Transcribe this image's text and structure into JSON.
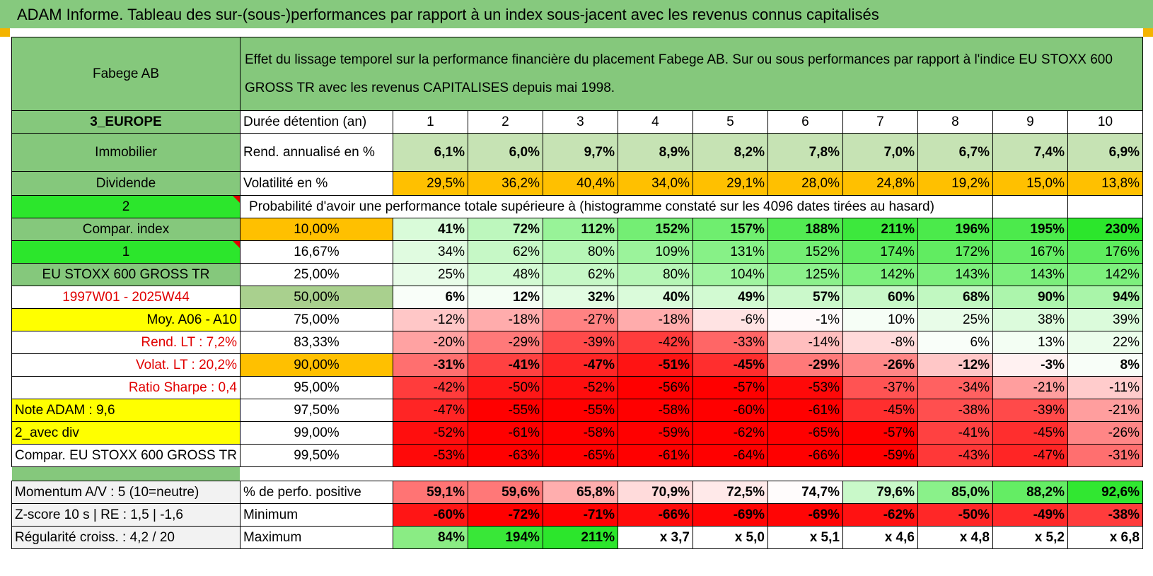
{
  "title": "ADAM Informe. Tableau des sur-(sous-)performances par rapport à un index sous-jacent avec les revenus connus capitalisés",
  "header": {
    "name": "Fabege AB",
    "description": "Effet du lissage temporel sur la performance financière du placement Fabege AB. Sur ou sous performances par rapport à l'indice EU STOXX 600 GROSS TR avec les revenus CAPITALISES depuis mai 1998."
  },
  "side": {
    "region": "3_EUROPE",
    "sector": "Immobilier",
    "type": "Dividende",
    "n2": "2",
    "compar_index": "Compar. index",
    "n1": "1",
    "index_name": "EU STOXX 600 GROSS TR",
    "period": "1997W01 - 2025W44",
    "moy": "Moy. A06 - A10",
    "rend_lt": "Rend. LT :   7,2%",
    "volat_lt": "Volat. LT :   20,2%",
    "sharpe": "Ratio Sharpe :    0,4",
    "note": "Note ADAM : 9,6",
    "avec_div": "2_avec div",
    "compar_name": "Compar. EU STOXX 600 GROSS TR"
  },
  "labels": {
    "duree": "Durée détention (an)",
    "rend": "Rend. annualisé en %",
    "vol": "Volatilité en %",
    "proba": "Probabilité d'avoir une performance totale supérieure à (histogramme constaté sur les 4096 dates tirées au hasard)"
  },
  "years": [
    "1",
    "2",
    "3",
    "4",
    "5",
    "6",
    "7",
    "8",
    "9",
    "10"
  ],
  "rend": [
    "6,1%",
    "6,0%",
    "9,7%",
    "8,9%",
    "8,2%",
    "7,8%",
    "7,0%",
    "6,7%",
    "7,4%",
    "6,9%"
  ],
  "vol": [
    "29,5%",
    "36,2%",
    "40,4%",
    "34,0%",
    "29,1%",
    "28,0%",
    "24,8%",
    "19,2%",
    "15,0%",
    "13,8%"
  ],
  "proba_rows": [
    {
      "pct": "10,00%",
      "vals": [
        "41%",
        "72%",
        "112%",
        "152%",
        "157%",
        "188%",
        "211%",
        "196%",
        "195%",
        "230%"
      ]
    },
    {
      "pct": "16,67%",
      "vals": [
        "34%",
        "62%",
        "80%",
        "109%",
        "131%",
        "152%",
        "174%",
        "172%",
        "167%",
        "176%"
      ]
    },
    {
      "pct": "25,00%",
      "vals": [
        "25%",
        "48%",
        "62%",
        "80%",
        "104%",
        "125%",
        "142%",
        "143%",
        "143%",
        "142%"
      ]
    },
    {
      "pct": "50,00%",
      "vals": [
        "6%",
        "12%",
        "32%",
        "40%",
        "49%",
        "57%",
        "60%",
        "68%",
        "90%",
        "94%"
      ]
    },
    {
      "pct": "75,00%",
      "vals": [
        "-12%",
        "-18%",
        "-27%",
        "-18%",
        "-6%",
        "-1%",
        "10%",
        "25%",
        "38%",
        "39%"
      ]
    },
    {
      "pct": "83,33%",
      "vals": [
        "-20%",
        "-29%",
        "-39%",
        "-42%",
        "-33%",
        "-14%",
        "-8%",
        "6%",
        "13%",
        "22%"
      ]
    },
    {
      "pct": "90,00%",
      "vals": [
        "-31%",
        "-41%",
        "-47%",
        "-51%",
        "-45%",
        "-29%",
        "-26%",
        "-12%",
        "-3%",
        "8%"
      ]
    },
    {
      "pct": "95,00%",
      "vals": [
        "-42%",
        "-50%",
        "-52%",
        "-56%",
        "-57%",
        "-53%",
        "-37%",
        "-34%",
        "-21%",
        "-11%"
      ]
    },
    {
      "pct": "97,50%",
      "vals": [
        "-47%",
        "-55%",
        "-55%",
        "-58%",
        "-60%",
        "-61%",
        "-45%",
        "-38%",
        "-39%",
        "-21%"
      ]
    },
    {
      "pct": "99,00%",
      "vals": [
        "-52%",
        "-61%",
        "-58%",
        "-59%",
        "-62%",
        "-65%",
        "-57%",
        "-41%",
        "-45%",
        "-26%"
      ]
    },
    {
      "pct": "99,50%",
      "vals": [
        "-53%",
        "-63%",
        "-65%",
        "-61%",
        "-64%",
        "-66%",
        "-59%",
        "-43%",
        "-47%",
        "-31%"
      ]
    }
  ],
  "bottom": {
    "momentum": "Momentum A/V : 5 (10=neutre)",
    "zscore": "Z-score 10 s | RE : 1,5 | -1,6",
    "regul": "Régularité croiss. : 4,2 / 20",
    "positive_label": "% de perfo. positive",
    "min_label": "Minimum",
    "max_label": "Maximum",
    "positive": [
      "59,1%",
      "59,6%",
      "65,8%",
      "70,9%",
      "72,5%",
      "74,7%",
      "79,6%",
      "85,0%",
      "88,2%",
      "92,6%"
    ],
    "minimum": [
      "-60%",
      "-72%",
      "-71%",
      "-66%",
      "-69%",
      "-69%",
      "-62%",
      "-50%",
      "-49%",
      "-38%"
    ],
    "maximum": [
      "84%",
      "194%",
      "211%",
      "x 3,7",
      "x 5,0",
      "x 5,1",
      "x 4,6",
      "x 4,8",
      "x 5,2",
      "x 6,8"
    ]
  },
  "colors": {
    "header_green": "#85c87c",
    "bright_green": "#2ce62c",
    "yellow": "#ffff00",
    "orange": "#ffc000",
    "red": "#ff0000"
  }
}
